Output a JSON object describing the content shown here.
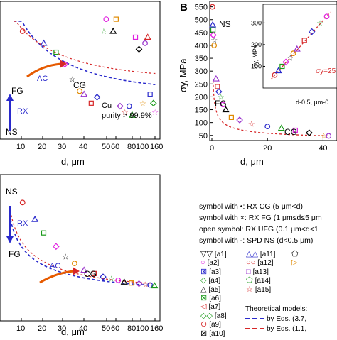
{
  "panel_labels": {
    "b": "B"
  },
  "chart_data": [
    {
      "type": "scatter",
      "panel": "top-left",
      "xlabel": "d, μm",
      "x_ticks": [
        "10",
        "20",
        "30",
        "40",
        "50",
        "60",
        "80",
        "100",
        "160"
      ],
      "annotations": {
        "cg": "CG",
        "ac": "AC",
        "fg": "FG",
        "rx": "RX",
        "ns": "NS"
      },
      "note_lines": [
        "Cu",
        "purity > 99.9%"
      ],
      "points": [
        {
          "x": 1,
          "y": 360
        },
        {
          "x": 3,
          "y": 320
        },
        {
          "x": 5,
          "y": 290
        },
        {
          "x": 7,
          "y": 250
        },
        {
          "x": 9,
          "y": 200
        },
        {
          "x": 12,
          "y": 160
        },
        {
          "x": 14,
          "y": 150
        },
        {
          "x": 18,
          "y": 120
        },
        {
          "x": 22,
          "y": 140
        },
        {
          "x": 27,
          "y": 360
        },
        {
          "x": 30,
          "y": 400
        },
        {
          "x": 38,
          "y": 360
        },
        {
          "x": 42,
          "y": 400
        },
        {
          "x": 48,
          "y": 110
        },
        {
          "x": 55,
          "y": 90
        },
        {
          "x": 65,
          "y": 110
        },
        {
          "x": 72,
          "y": 80
        },
        {
          "x": 80,
          "y": 340
        },
        {
          "x": 90,
          "y": 300
        },
        {
          "x": 100,
          "y": 120
        },
        {
          "x": 110,
          "y": 320
        },
        {
          "x": 120,
          "y": 340
        },
        {
          "x": 130,
          "y": 150
        },
        {
          "x": 145,
          "y": 120
        },
        {
          "x": 150,
          "y": 90
        }
      ]
    },
    {
      "type": "scatter",
      "panel": "bottom-left",
      "xlabel": "d, μm",
      "x_ticks": [
        "10",
        "20",
        "30",
        "40",
        "50",
        "60",
        "80",
        "100",
        "160"
      ],
      "annotations": {
        "ns": "NS",
        "rx": "RX",
        "fg": "FG",
        "ac": "AC",
        "cg": "CG"
      },
      "points": [
        {
          "x": 1,
          "y": 350
        },
        {
          "x": 2,
          "y": 300
        },
        {
          "x": 3,
          "y": 260
        },
        {
          "x": 5,
          "y": 220
        },
        {
          "x": 7,
          "y": 190
        },
        {
          "x": 10,
          "y": 170
        },
        {
          "x": 14,
          "y": 150
        },
        {
          "x": 20,
          "y": 140
        },
        {
          "x": 27,
          "y": 130
        },
        {
          "x": 35,
          "y": 125
        },
        {
          "x": 45,
          "y": 120
        },
        {
          "x": 55,
          "y": 115
        },
        {
          "x": 70,
          "y": 112
        },
        {
          "x": 90,
          "y": 110
        },
        {
          "x": 110,
          "y": 108
        },
        {
          "x": 130,
          "y": 106
        },
        {
          "x": 150,
          "y": 104
        }
      ]
    },
    {
      "type": "scatter",
      "panel": "B",
      "ylabel": "σy, MPa",
      "xlabel": "d, μm",
      "y_ticks": [
        "50",
        "100",
        "150",
        "200",
        "250",
        "300",
        "350",
        "400",
        "450",
        "500",
        "550"
      ],
      "x_ticks": [
        "0",
        "20",
        "40"
      ],
      "annotations": {
        "ns": "NS",
        "fg": "FG",
        "cg": "CG"
      },
      "points": [
        {
          "x": 0.2,
          "y": 550
        },
        {
          "x": 0.3,
          "y": 480
        },
        {
          "x": 0.4,
          "y": 460
        },
        {
          "x": 0.5,
          "y": 440
        },
        {
          "x": 0.6,
          "y": 420
        },
        {
          "x": 0.8,
          "y": 400
        },
        {
          "x": 1.5,
          "y": 270
        },
        {
          "x": 2,
          "y": 240
        },
        {
          "x": 2.5,
          "y": 220
        },
        {
          "x": 3,
          "y": 200
        },
        {
          "x": 4,
          "y": 170
        },
        {
          "x": 5,
          "y": 150
        },
        {
          "x": 7,
          "y": 120
        },
        {
          "x": 10,
          "y": 110
        },
        {
          "x": 14,
          "y": 95
        },
        {
          "x": 20,
          "y": 85
        },
        {
          "x": 25,
          "y": 78
        },
        {
          "x": 30,
          "y": 70
        },
        {
          "x": 35,
          "y": 60
        },
        {
          "x": 40,
          "y": 50
        },
        {
          "x": 42,
          "y": 48
        }
      ]
    },
    {
      "type": "scatter",
      "panel": "B-inset",
      "ylabel": "σy, MPa",
      "xlabel": "d-0.5, μm-0.",
      "y_ticks": [
        "100",
        "200",
        "300"
      ],
      "fit_label": "σy=25",
      "points": [
        {
          "x": 0.1,
          "y": 60
        },
        {
          "x": 0.15,
          "y": 80
        },
        {
          "x": 0.2,
          "y": 100
        },
        {
          "x": 0.25,
          "y": 120
        },
        {
          "x": 0.3,
          "y": 140
        },
        {
          "x": 0.35,
          "y": 160
        },
        {
          "x": 0.4,
          "y": 180
        },
        {
          "x": 0.5,
          "y": 220
        },
        {
          "x": 0.6,
          "y": 260
        },
        {
          "x": 0.7,
          "y": 300
        },
        {
          "x": 0.8,
          "y": 330
        }
      ]
    }
  ],
  "legend": {
    "rules": [
      "symbol with •: RX CG (5 μm<d)",
      "symbol with ×: RX FG (1 μm≤d≤5 μm",
      "open symbol: RX UFG (0.1 μm<d<1",
      "symbol with -: SPD NS (d<0.5 μm)"
    ],
    "markers": [
      {
        "glyph": "▽▽",
        "label": "[a1]",
        "color": "#000000"
      },
      {
        "glyph": "○",
        "label": "[a2]",
        "color": "#e020e0"
      },
      {
        "glyph": "⊠",
        "label": "[a3]",
        "color": "#2a2acc"
      },
      {
        "glyph": "◇",
        "label": "[a4]",
        "color": "#1a9a1a"
      },
      {
        "glyph": "△",
        "label": "[a5]",
        "color": "#000000"
      },
      {
        "glyph": "⊠",
        "label": "[a6]",
        "color": "#1a9a1a"
      },
      {
        "glyph": "◁",
        "label": "[a7]",
        "color": "#d62728"
      },
      {
        "glyph": "◇◇",
        "label": "[a8]",
        "color": "#1a9a1a"
      },
      {
        "glyph": "⊖",
        "label": "[a9]",
        "color": "#d62728"
      },
      {
        "glyph": "⊠",
        "label": "[a10]",
        "color": "#000000"
      },
      {
        "glyph": "△△",
        "label": "[a11]",
        "color": "#2a2acc"
      },
      {
        "glyph": "○○",
        "label": "[a12]",
        "color": "#d62728"
      },
      {
        "glyph": "□",
        "label": "[a13]",
        "color": "#9933cc"
      },
      {
        "glyph": "⬠",
        "label": "[a14]",
        "color": "#1a9a1a"
      },
      {
        "glyph": "☆",
        "label": "[a15]",
        "color": "#d62728"
      },
      {
        "glyph": "⬠",
        "label": "",
        "color": "#000000"
      },
      {
        "glyph": "▷",
        "label": "",
        "color": "#e08a00"
      }
    ],
    "theory_title": "Theoretical models:",
    "theory_lines": [
      "by Eqs. (3.7,",
      "by Eqs. (1.1,"
    ]
  }
}
